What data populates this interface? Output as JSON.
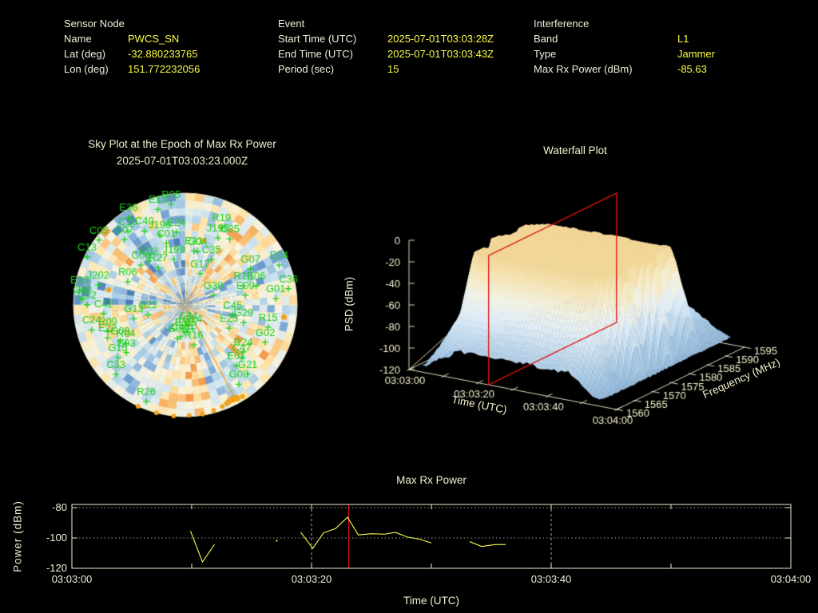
{
  "header": {
    "sensor_node": {
      "title": "Sensor Node",
      "rows": [
        {
          "label": "Name",
          "value": "PWCS_SN"
        },
        {
          "label": "Lat (deg)",
          "value": "-32.880233765"
        },
        {
          "label": "Lon (deg)",
          "value": "151.772232056"
        }
      ]
    },
    "event": {
      "title": "Event",
      "rows": [
        {
          "label": "Start Time (UTC)",
          "value": "2025-07-01T03:03:28Z"
        },
        {
          "label": "End Time (UTC)",
          "value": "2025-07-01T03:03:43Z"
        },
        {
          "label": "Period (sec)",
          "value": "15"
        }
      ]
    },
    "interference": {
      "title": "Interference",
      "rows": [
        {
          "label": "Band",
          "value": "L1"
        },
        {
          "label": "Type",
          "value": "Jammer"
        },
        {
          "label": "Max Rx Power (dBm)",
          "value": "-85.63"
        }
      ]
    }
  },
  "colors": {
    "background": "#000000",
    "label_text": "#f1eed9",
    "value_text": "#fbfb45",
    "plot_frame": "#efedcc",
    "grid_gray": "#cfcfcf",
    "series_yellow": "#fcfc4e",
    "event_red": "#e01212",
    "satellite_green": "#1fcf1f",
    "track_orange": "#f2a31b"
  },
  "chart_data": [
    {
      "type": "heatmap",
      "subtype": "polar-sky-plot",
      "title": "Sky Plot at the Epoch of Max Rx Power",
      "subtitle": "2025-07-01T03:03:23.000Z",
      "elevation_rings_deg": [
        0,
        30,
        60
      ],
      "spoke_step_deg": 45,
      "palette_rgb": [
        [
          69,
          117,
          180
        ],
        [
          116,
          160,
          211
        ],
        [
          171,
          207,
          229
        ],
        [
          215,
          232,
          240
        ],
        [
          248,
          243,
          224
        ],
        [
          253,
          227,
          166
        ],
        [
          249,
          178,
          100
        ],
        [
          237,
          129,
          53
        ]
      ],
      "satellites": [
        {
          "id": "R05",
          "az": 352,
          "el": 8
        },
        {
          "id": "E13",
          "az": 344,
          "el": 10
        },
        {
          "id": "E36",
          "az": 327,
          "el": 6
        },
        {
          "id": "E24",
          "az": 353,
          "el": 31
        },
        {
          "id": "C10",
          "az": 322,
          "el": 15
        },
        {
          "id": "C05",
          "az": 307,
          "el": 3
        },
        {
          "id": "C07",
          "az": 317,
          "el": 18
        },
        {
          "id": "C40",
          "az": 331,
          "el": 22
        },
        {
          "id": "J196",
          "az": 340,
          "el": 30
        },
        {
          "id": "J195",
          "az": 26,
          "el": 30
        },
        {
          "id": "G25",
          "az": 34,
          "el": 26
        },
        {
          "id": "R19",
          "az": 25,
          "el": 21
        },
        {
          "id": "G04",
          "az": 13,
          "el": 46
        },
        {
          "id": "E31",
          "az": 9,
          "el": 46
        },
        {
          "id": "C35",
          "az": 30,
          "el": 48
        },
        {
          "id": "C13",
          "az": 296,
          "el": 2
        },
        {
          "id": "J199",
          "az": 346,
          "el": 52
        },
        {
          "id": "C01",
          "az": 343,
          "el": 38
        },
        {
          "id": "C03",
          "az": 320,
          "el": 44
        },
        {
          "id": "C06",
          "az": 312,
          "el": 42
        },
        {
          "id": "R27",
          "az": 324,
          "el": 53
        },
        {
          "id": "G17",
          "az": 25,
          "el": 62
        },
        {
          "id": "J202",
          "az": 283,
          "el": 18
        },
        {
          "id": "R06",
          "az": 292,
          "el": 40
        },
        {
          "id": "E33",
          "az": 278,
          "el": 4
        },
        {
          "id": "C60",
          "az": 273,
          "el": 7
        },
        {
          "id": "C02",
          "az": 270,
          "el": 11
        },
        {
          "id": "C42",
          "az": 264,
          "el": 24
        },
        {
          "id": "G07",
          "az": 61,
          "el": 30
        },
        {
          "id": "E04",
          "az": 67,
          "el": 8
        },
        {
          "id": "R18",
          "az": 72,
          "el": 41
        },
        {
          "id": "E06",
          "az": 75,
          "el": 31
        },
        {
          "id": "E09",
          "az": 81,
          "el": 41
        },
        {
          "id": "C36",
          "az": 81,
          "el": 6
        },
        {
          "id": "G01",
          "az": 86,
          "el": 17
        },
        {
          "id": "G30",
          "az": 71,
          "el": 66
        },
        {
          "id": "C45",
          "az": 102,
          "el": 51
        },
        {
          "id": "G29",
          "az": 107,
          "el": 41
        },
        {
          "id": "R15",
          "az": 105,
          "el": 21
        },
        {
          "id": "E23",
          "az": 118,
          "el": 50
        },
        {
          "id": "G02",
          "az": 115,
          "el": 19
        },
        {
          "id": "R24",
          "az": 129,
          "el": 30
        },
        {
          "id": "C47",
          "az": 133,
          "el": 28
        },
        {
          "id": "E01",
          "az": 140,
          "el": 26
        },
        {
          "id": "G21",
          "az": 138,
          "el": 15
        },
        {
          "id": "G08",
          "az": 146,
          "el": 13
        },
        {
          "id": "R16",
          "az": 168,
          "el": 57
        },
        {
          "id": "E05",
          "az": 175,
          "el": 68
        },
        {
          "id": "G14",
          "az": 164,
          "el": 70
        },
        {
          "id": "C34",
          "az": 172,
          "el": 73
        },
        {
          "id": "E15",
          "az": 183,
          "el": 68
        },
        {
          "id": "C46",
          "az": 189,
          "el": 64
        },
        {
          "id": "G06",
          "az": 193,
          "el": 62
        },
        {
          "id": "G22",
          "az": 255,
          "el": 59
        },
        {
          "id": "G13",
          "az": 255,
          "el": 47
        },
        {
          "id": "C24",
          "az": 255,
          "el": 12
        },
        {
          "id": "E22",
          "az": 247,
          "el": 22
        },
        {
          "id": "R09",
          "az": 251,
          "el": 24
        },
        {
          "id": "R04",
          "az": 237,
          "el": 33
        },
        {
          "id": "G09",
          "az": 241,
          "el": 30
        },
        {
          "id": "E03",
          "az": 231,
          "el": 29
        },
        {
          "id": "G15",
          "az": 232,
          "el": 21
        },
        {
          "id": "C33",
          "az": 225,
          "el": 11
        },
        {
          "id": "R26",
          "az": 202,
          "el": 6
        }
      ],
      "track": {
        "line": {
          "az": 152,
          "el_from": 88,
          "el_to": 4
        },
        "dots": [
          {
            "az": 148,
            "el": 3,
            "r": 3
          },
          {
            "az": 151,
            "el": 4,
            "r": 4
          },
          {
            "az": 153,
            "el": 5,
            "r": 4.5
          },
          {
            "az": 155,
            "el": 5,
            "r": 4
          },
          {
            "az": 157,
            "el": 4,
            "r": 3.5
          },
          {
            "az": 160,
            "el": 3,
            "r": 3
          },
          {
            "az": 165,
            "el": 2,
            "r": 3
          },
          {
            "az": 171,
            "el": 1,
            "r": 3
          },
          {
            "az": 178,
            "el": 1,
            "r": 2.8
          },
          {
            "az": 186,
            "el": 0,
            "r": 2.8
          },
          {
            "az": 195,
            "el": 0,
            "r": 2.8
          },
          {
            "az": 205,
            "el": 0,
            "r": 3
          },
          {
            "az": 16,
            "el": 36,
            "r": 3.2
          },
          {
            "az": 281,
            "el": 27,
            "r": 3.2
          },
          {
            "az": 97,
            "el": 10,
            "r": 3.5
          }
        ]
      }
    },
    {
      "type": "heatmap",
      "subtype": "3d-surface-waterfall",
      "title": "Waterfall Plot",
      "xlabel": "Time (UTC)",
      "ylabel": "Frequency (MHz)",
      "zlabel": "PSD (dBm)",
      "time_ticks": [
        {
          "s": 0,
          "label": "03:03:00"
        },
        {
          "s": 20,
          "label": "03:03:20"
        },
        {
          "s": 40,
          "label": "03:03:40"
        },
        {
          "s": 60,
          "label": "03:04:00"
        }
      ],
      "time_minor_tick_step_s": 10,
      "freq_ticks": [
        1560,
        1565,
        1570,
        1575,
        1580,
        1585,
        1590,
        1595
      ],
      "psd_ticks": [
        0,
        -20,
        -40,
        -60,
        -80,
        -100,
        -120
      ],
      "zlim": [
        -120,
        0
      ],
      "freq_range_mhz": [
        1560,
        1595
      ],
      "marker_plane_time_s": 23,
      "surface": {
        "noise_floor_dbm": -113,
        "peak_psd_dbm": -22,
        "peak_freq_mhz": 1577,
        "signal_width_mhz": 22,
        "active_time_s": [
          5,
          55
        ]
      },
      "colormap_stops": [
        [
          -120,
          [
            146,
            180,
            216
          ]
        ],
        [
          -100,
          [
            168,
            201,
            229
          ]
        ],
        [
          -82,
          [
            198,
            221,
            239
          ]
        ],
        [
          -65,
          [
            226,
            238,
            246
          ]
        ],
        [
          -50,
          [
            242,
            242,
            228
          ]
        ],
        [
          -34,
          [
            246,
            230,
            186
          ]
        ],
        [
          -19,
          [
            241,
            214,
            150
          ]
        ]
      ]
    },
    {
      "type": "line",
      "title": "Max Rx Power",
      "xlabel": "Time (UTC)",
      "ylabel": "Power (dBm)",
      "x_ticks": [
        {
          "s": 0,
          "label": "03:03:00"
        },
        {
          "s": 20,
          "label": "03:03:20"
        },
        {
          "s": 40,
          "label": "03:03:40"
        },
        {
          "s": 60,
          "label": "03:04:00"
        }
      ],
      "x_tick_step_s": 10,
      "y_ticks": [
        -80,
        -100,
        -120
      ],
      "ylim": [
        -120,
        -77.9
      ],
      "xlim_s": [
        0,
        60
      ],
      "grid": {
        "v_dashed_s": [
          20,
          40
        ],
        "h_dotted_dbm": [
          -80,
          -100
        ]
      },
      "event_marker_s": 23.1,
      "series": [
        {
          "name": "max_rx_power_dbm",
          "segments": [
            [
              [
                9.9,
                -95.5
              ],
              [
                10.9,
                -115.8
              ],
              [
                11.9,
                -104.3
              ]
            ],
            [
              [
                17.1,
                -101.8
              ]
            ],
            [
              [
                19.1,
                -96.2
              ],
              [
                20.1,
                -106.9
              ],
              [
                21.0,
                -96.6
              ],
              [
                22.0,
                -93.8
              ],
              [
                23.0,
                -86.3
              ],
              [
                23.9,
                -98.0
              ],
              [
                25.0,
                -97.2
              ],
              [
                26.1,
                -97.5
              ],
              [
                27.0,
                -96.3
              ],
              [
                28.0,
                -99.4
              ],
              [
                29.0,
                -100.8
              ],
              [
                30.0,
                -103.3
              ]
            ],
            [
              [
                33.2,
                -102.4
              ],
              [
                34.2,
                -105.6
              ],
              [
                35.3,
                -104.4
              ],
              [
                36.2,
                -104.3
              ]
            ]
          ]
        }
      ]
    }
  ]
}
